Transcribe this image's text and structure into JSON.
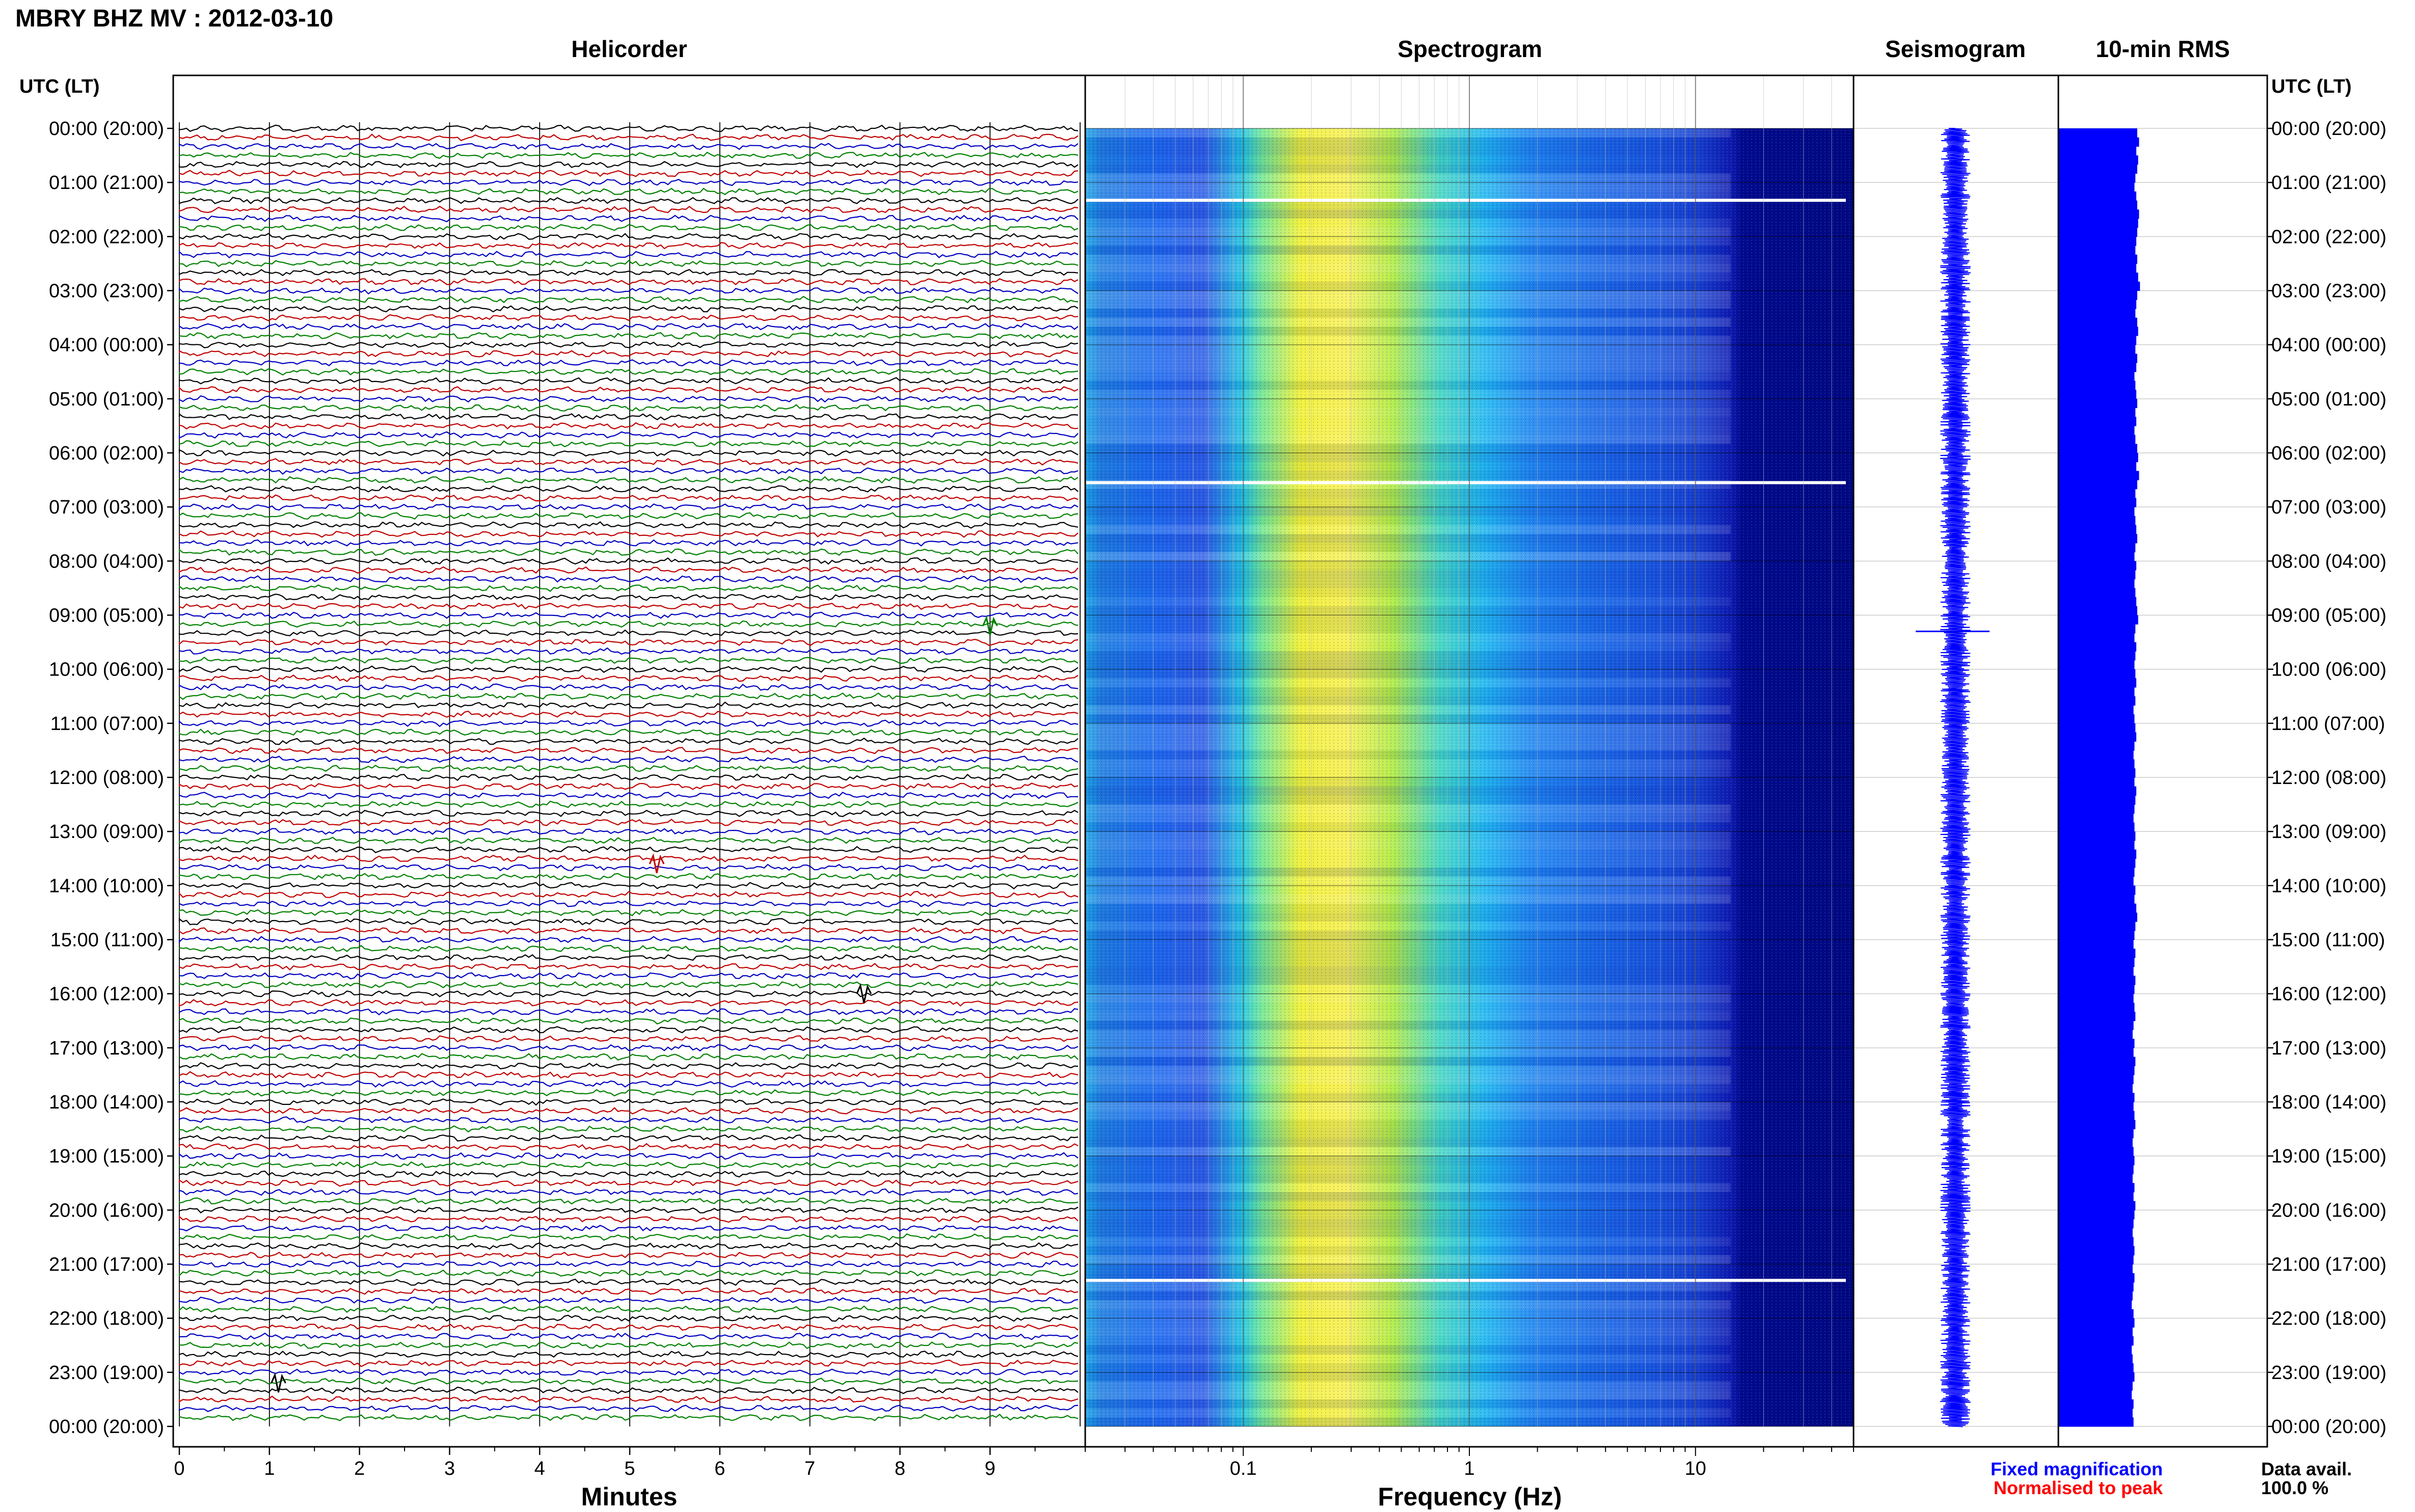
{
  "header": {
    "title": "MBRY BHZ MV : 2012-03-10",
    "left_axis_label": "UTC (LT)",
    "right_axis_label": "UTC (LT)"
  },
  "panels": {
    "helicorder": "Helicorder",
    "spectrogram": "Spectrogram",
    "seismogram": "Seismogram",
    "rms": "10-min RMS"
  },
  "time_labels": [
    "00:00 (20:00)",
    "01:00 (21:00)",
    "02:00 (22:00)",
    "03:00 (23:00)",
    "04:00 (00:00)",
    "05:00 (01:00)",
    "06:00 (02:00)",
    "07:00 (03:00)",
    "08:00 (04:00)",
    "09:00 (05:00)",
    "10:00 (06:00)",
    "11:00 (07:00)",
    "12:00 (08:00)",
    "13:00 (09:00)",
    "14:00 (10:00)",
    "15:00 (11:00)",
    "16:00 (12:00)",
    "17:00 (13:00)",
    "18:00 (14:00)",
    "19:00 (15:00)",
    "20:00 (16:00)",
    "21:00 (17:00)",
    "22:00 (18:00)",
    "23:00 (19:00)",
    "00:00 (20:00)"
  ],
  "helicorder_xaxis": {
    "label": "Minutes",
    "ticks": [
      "0",
      "1",
      "2",
      "3",
      "4",
      "5",
      "6",
      "7",
      "8",
      "9"
    ],
    "range": [
      0,
      10
    ],
    "trace_colors": [
      "#000000",
      "#c00000",
      "#0000c0",
      "#008000"
    ]
  },
  "spectrogram_xaxis": {
    "label": "Frequency (Hz)",
    "ticks": [
      "0.1",
      "1",
      "10"
    ],
    "tick_values": [
      0.1,
      1,
      10
    ],
    "scale": "log",
    "range": [
      0.02,
      50
    ]
  },
  "legend": {
    "fixed": "Fixed magnification",
    "normalised": "Normalised to peak",
    "fixed_color": "#0000ff",
    "normalised_color": "#ff0000"
  },
  "data_avail": {
    "label": "Data avail.",
    "value": "100.0 %"
  },
  "chart_data": [
    {
      "type": "line",
      "name": "helicorder",
      "title": "Helicorder",
      "xlabel": "Minutes",
      "xlim": [
        0,
        10
      ],
      "row_minutes": 10,
      "rows": 144,
      "ylim_hours": [
        0,
        24
      ]
    },
    {
      "type": "heatmap",
      "name": "spectrogram",
      "title": "Spectrogram",
      "xlabel": "Frequency (Hz)",
      "xscale": "log",
      "xlim": [
        0.02,
        50
      ],
      "ylim_hours": [
        0,
        24
      ]
    },
    {
      "type": "line",
      "name": "seismogram",
      "title": "Seismogram",
      "ylim_hours": [
        0,
        24
      ]
    },
    {
      "type": "bar",
      "name": "rms",
      "title": "10-min RMS",
      "orientation": "horizontal",
      "bins_minutes": 10,
      "ylim_hours": [
        0,
        24
      ],
      "values": [
        0.86,
        0.88,
        0.85,
        0.87,
        0.86,
        0.84,
        0.83,
        0.85,
        0.86,
        0.88,
        0.87,
        0.86,
        0.85,
        0.84,
        0.86,
        0.85,
        0.87,
        0.89,
        0.86,
        0.85,
        0.84,
        0.86,
        0.87,
        0.85,
        0.84,
        0.86,
        0.85,
        0.83,
        0.84,
        0.85,
        0.86,
        0.84,
        0.85,
        0.83,
        0.84,
        0.86,
        0.87,
        0.85,
        0.88,
        0.86,
        0.84,
        0.85,
        0.83,
        0.84,
        0.85,
        0.86,
        0.84,
        0.83,
        0.85,
        0.84,
        0.83,
        0.84,
        0.85,
        0.86,
        0.87,
        0.84,
        0.83,
        0.85,
        0.84,
        0.83,
        0.84,
        0.85,
        0.83,
        0.84,
        0.82,
        0.83,
        0.84,
        0.85,
        0.83,
        0.82,
        0.83,
        0.84,
        0.83,
        0.85,
        0.84,
        0.83,
        0.82,
        0.83,
        0.84,
        0.83,
        0.85,
        0.84,
        0.83,
        0.82,
        0.84,
        0.83,
        0.85,
        0.86,
        0.84,
        0.83,
        0.82,
        0.84,
        0.83,
        0.82,
        0.84,
        0.83,
        0.82,
        0.83,
        0.84,
        0.82,
        0.81,
        0.83,
        0.82,
        0.84,
        0.83,
        0.82,
        0.81,
        0.83,
        0.82,
        0.83,
        0.84,
        0.82,
        0.81,
        0.82,
        0.83,
        0.82,
        0.81,
        0.83,
        0.82,
        0.84,
        0.83,
        0.82,
        0.81,
        0.82,
        0.83,
        0.82,
        0.81,
        0.83,
        0.82,
        0.81,
        0.8,
        0.82,
        0.83,
        0.81,
        0.82,
        0.8,
        0.81,
        0.82,
        0.83,
        0.81,
        0.8,
        0.82,
        0.81,
        0.82
      ]
    }
  ]
}
